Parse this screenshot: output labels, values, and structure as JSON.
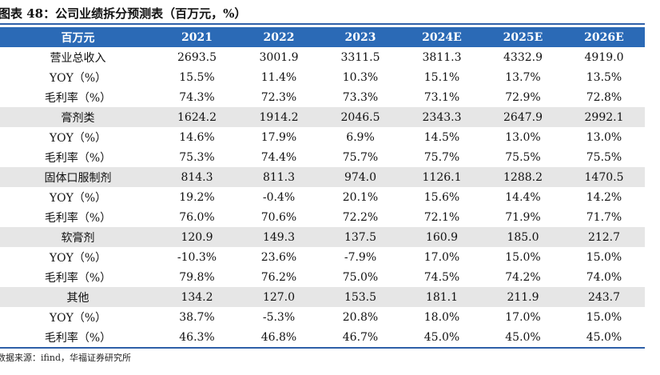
{
  "title": "图表 48：公司业绩拆分预测表（百万元，%）",
  "table": {
    "header": [
      "百万元",
      "2021",
      "2022",
      "2023",
      "2024E",
      "2025E",
      "2026E"
    ],
    "rows": [
      {
        "label": "营业总收入",
        "values": [
          "2693.5",
          "3001.9",
          "3311.5",
          "3811.3",
          "4332.9",
          "4919.0"
        ],
        "shaded": false
      },
      {
        "label": "YOY（%）",
        "values": [
          "15.5%",
          "11.4%",
          "10.3%",
          "15.1%",
          "13.7%",
          "13.5%"
        ],
        "shaded": false
      },
      {
        "label": "毛利率（%）",
        "values": [
          "74.3%",
          "72.3%",
          "73.3%",
          "73.1%",
          "72.9%",
          "72.8%"
        ],
        "shaded": false
      },
      {
        "label": "膏剂类",
        "values": [
          "1624.2",
          "1914.2",
          "2046.5",
          "2343.3",
          "2647.9",
          "2992.1"
        ],
        "shaded": true
      },
      {
        "label": "YOY（%）",
        "values": [
          "14.6%",
          "17.9%",
          "6.9%",
          "14.5%",
          "13.0%",
          "13.0%"
        ],
        "shaded": false
      },
      {
        "label": "毛利率（%）",
        "values": [
          "75.3%",
          "74.4%",
          "75.7%",
          "75.7%",
          "75.5%",
          "75.5%"
        ],
        "shaded": false
      },
      {
        "label": "固体口服制剂",
        "values": [
          "814.3",
          "811.3",
          "974.0",
          "1126.1",
          "1288.2",
          "1470.5"
        ],
        "shaded": true
      },
      {
        "label": "YOY（%）",
        "values": [
          "19.2%",
          "-0.4%",
          "20.1%",
          "15.6%",
          "14.4%",
          "14.2%"
        ],
        "shaded": false
      },
      {
        "label": "毛利率（%）",
        "values": [
          "76.0%",
          "70.6%",
          "72.2%",
          "72.1%",
          "71.9%",
          "71.7%"
        ],
        "shaded": false
      },
      {
        "label": "软膏剂",
        "values": [
          "120.9",
          "149.3",
          "137.5",
          "160.9",
          "185.0",
          "212.7"
        ],
        "shaded": true
      },
      {
        "label": "YOY（%）",
        "values": [
          "-10.3%",
          "23.6%",
          "-7.9%",
          "17.0%",
          "15.0%",
          "15.0%"
        ],
        "shaded": false
      },
      {
        "label": "毛利率（%）",
        "values": [
          "79.8%",
          "76.2%",
          "75.0%",
          "74.5%",
          "74.2%",
          "74.0%"
        ],
        "shaded": false
      },
      {
        "label": "其他",
        "values": [
          "134.2",
          "127.0",
          "153.5",
          "181.1",
          "211.9",
          "243.7"
        ],
        "shaded": true
      },
      {
        "label": "YOY（%）",
        "values": [
          "38.7%",
          "-5.3%",
          "20.8%",
          "18.0%",
          "17.0%",
          "15.0%"
        ],
        "shaded": false
      },
      {
        "label": "毛利率（%）",
        "values": [
          "46.3%",
          "46.8%",
          "46.7%",
          "45.0%",
          "45.0%",
          "45.0%"
        ],
        "shaded": false
      }
    ]
  },
  "source": "数据来源：ifind，华福证券研究所",
  "colors": {
    "header_bg": "#2b6ab6",
    "rule": "#2e5fa8",
    "shade": "#e6e6e6"
  }
}
